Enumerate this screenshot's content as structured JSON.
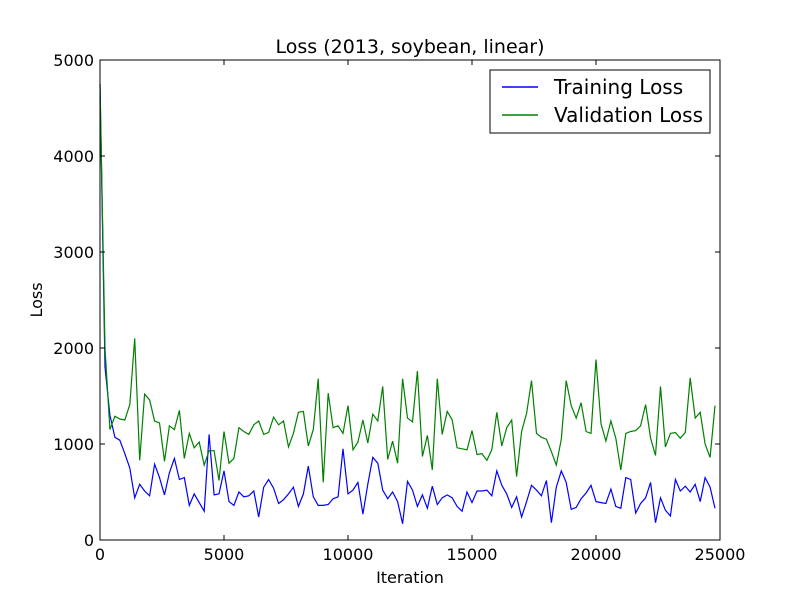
{
  "chart_data": {
    "type": "line",
    "title": "Loss (2013, soybean, linear)",
    "xlabel": "Iteration",
    "ylabel": "Loss",
    "xlim": [
      0,
      25000
    ],
    "ylim": [
      0,
      5000
    ],
    "xticks": [
      0,
      5000,
      10000,
      15000,
      20000,
      25000
    ],
    "yticks": [
      0,
      1000,
      2000,
      3000,
      4000,
      5000
    ],
    "grid": false,
    "legend_position": "top-right",
    "x": [
      0,
      200,
      400,
      600,
      800,
      1000,
      1200,
      1400,
      1600,
      1800,
      2000,
      2200,
      2400,
      2600,
      2800,
      3000,
      3200,
      3400,
      3600,
      3800,
      4000,
      4200,
      4400,
      4600,
      4800,
      5000,
      5200,
      5400,
      5600,
      5800,
      6000,
      6200,
      6400,
      6600,
      6800,
      7000,
      7200,
      7400,
      7600,
      7800,
      8000,
      8200,
      8400,
      8600,
      8800,
      9000,
      9200,
      9400,
      9600,
      9800,
      10000,
      10200,
      10400,
      10600,
      10800,
      11000,
      11200,
      11400,
      11600,
      11800,
      12000,
      12200,
      12400,
      12600,
      12800,
      13000,
      13200,
      13400,
      13600,
      13800,
      14000,
      14200,
      14400,
      14600,
      14800,
      15000,
      15200,
      15400,
      15600,
      15800,
      16000,
      16200,
      16400,
      16600,
      16800,
      17000,
      17200,
      17400,
      17600,
      17800,
      18000,
      18200,
      18400,
      18600,
      18800,
      19000,
      19200,
      19400,
      19600,
      19800,
      20000,
      20200,
      20400,
      20600,
      20800,
      21000,
      21200,
      21400,
      21600,
      21800,
      22000,
      22200,
      22400,
      22600,
      22800,
      23000,
      23200,
      23400,
      23600,
      23800,
      24000,
      24200,
      24400,
      24600,
      24800
    ],
    "series": [
      {
        "name": "Training Loss",
        "color": "#0000ff",
        "values": [
          4750,
          1800,
          1300,
          1070,
          1040,
          900,
          750,
          440,
          580,
          510,
          460,
          790,
          650,
          470,
          700,
          850,
          630,
          650,
          360,
          480,
          390,
          300,
          1100,
          470,
          480,
          720,
          400,
          360,
          500,
          450,
          460,
          510,
          240,
          550,
          630,
          540,
          380,
          420,
          480,
          550,
          350,
          480,
          770,
          450,
          360,
          360,
          370,
          430,
          450,
          950,
          480,
          520,
          600,
          270,
          580,
          860,
          800,
          520,
          430,
          500,
          400,
          170,
          610,
          520,
          350,
          470,
          330,
          560,
          370,
          440,
          470,
          440,
          350,
          300,
          500,
          390,
          510,
          510,
          520,
          460,
          720,
          570,
          480,
          340,
          450,
          240,
          400,
          570,
          520,
          460,
          620,
          180,
          550,
          720,
          600,
          320,
          340,
          430,
          490,
          570,
          400,
          390,
          380,
          530,
          350,
          330,
          650,
          630,
          280,
          380,
          440,
          600,
          180,
          440,
          310,
          250,
          630,
          510,
          560,
          500,
          580,
          400,
          650,
          550,
          330
        ]
      },
      {
        "name": "Validation Loss",
        "color": "#008000",
        "values": [
          4750,
          2000,
          1150,
          1290,
          1260,
          1250,
          1410,
          2100,
          830,
          1520,
          1460,
          1240,
          1220,
          820,
          1190,
          1150,
          1350,
          850,
          1110,
          960,
          1020,
          780,
          930,
          930,
          620,
          1130,
          800,
          850,
          1170,
          1130,
          1100,
          1200,
          1240,
          1100,
          1120,
          1280,
          1200,
          1240,
          970,
          1110,
          1330,
          1340,
          980,
          1150,
          1680,
          600,
          1530,
          1170,
          1190,
          1110,
          1400,
          940,
          1020,
          1250,
          1010,
          1310,
          1240,
          1600,
          840,
          1030,
          800,
          1680,
          1270,
          1230,
          1760,
          870,
          1090,
          730,
          1680,
          1100,
          1340,
          1250,
          960,
          950,
          940,
          1140,
          890,
          900,
          830,
          940,
          1330,
          980,
          1170,
          1250,
          660,
          1130,
          1320,
          1660,
          1110,
          1070,
          1050,
          920,
          780,
          1050,
          1660,
          1400,
          1270,
          1430,
          1130,
          1110,
          1880,
          1210,
          1030,
          1240,
          1060,
          730,
          1110,
          1130,
          1140,
          1190,
          1410,
          1060,
          880,
          1600,
          970,
          1110,
          1120,
          1060,
          1120,
          1690,
          1270,
          1330,
          1000,
          860,
          1400
        ]
      }
    ]
  }
}
